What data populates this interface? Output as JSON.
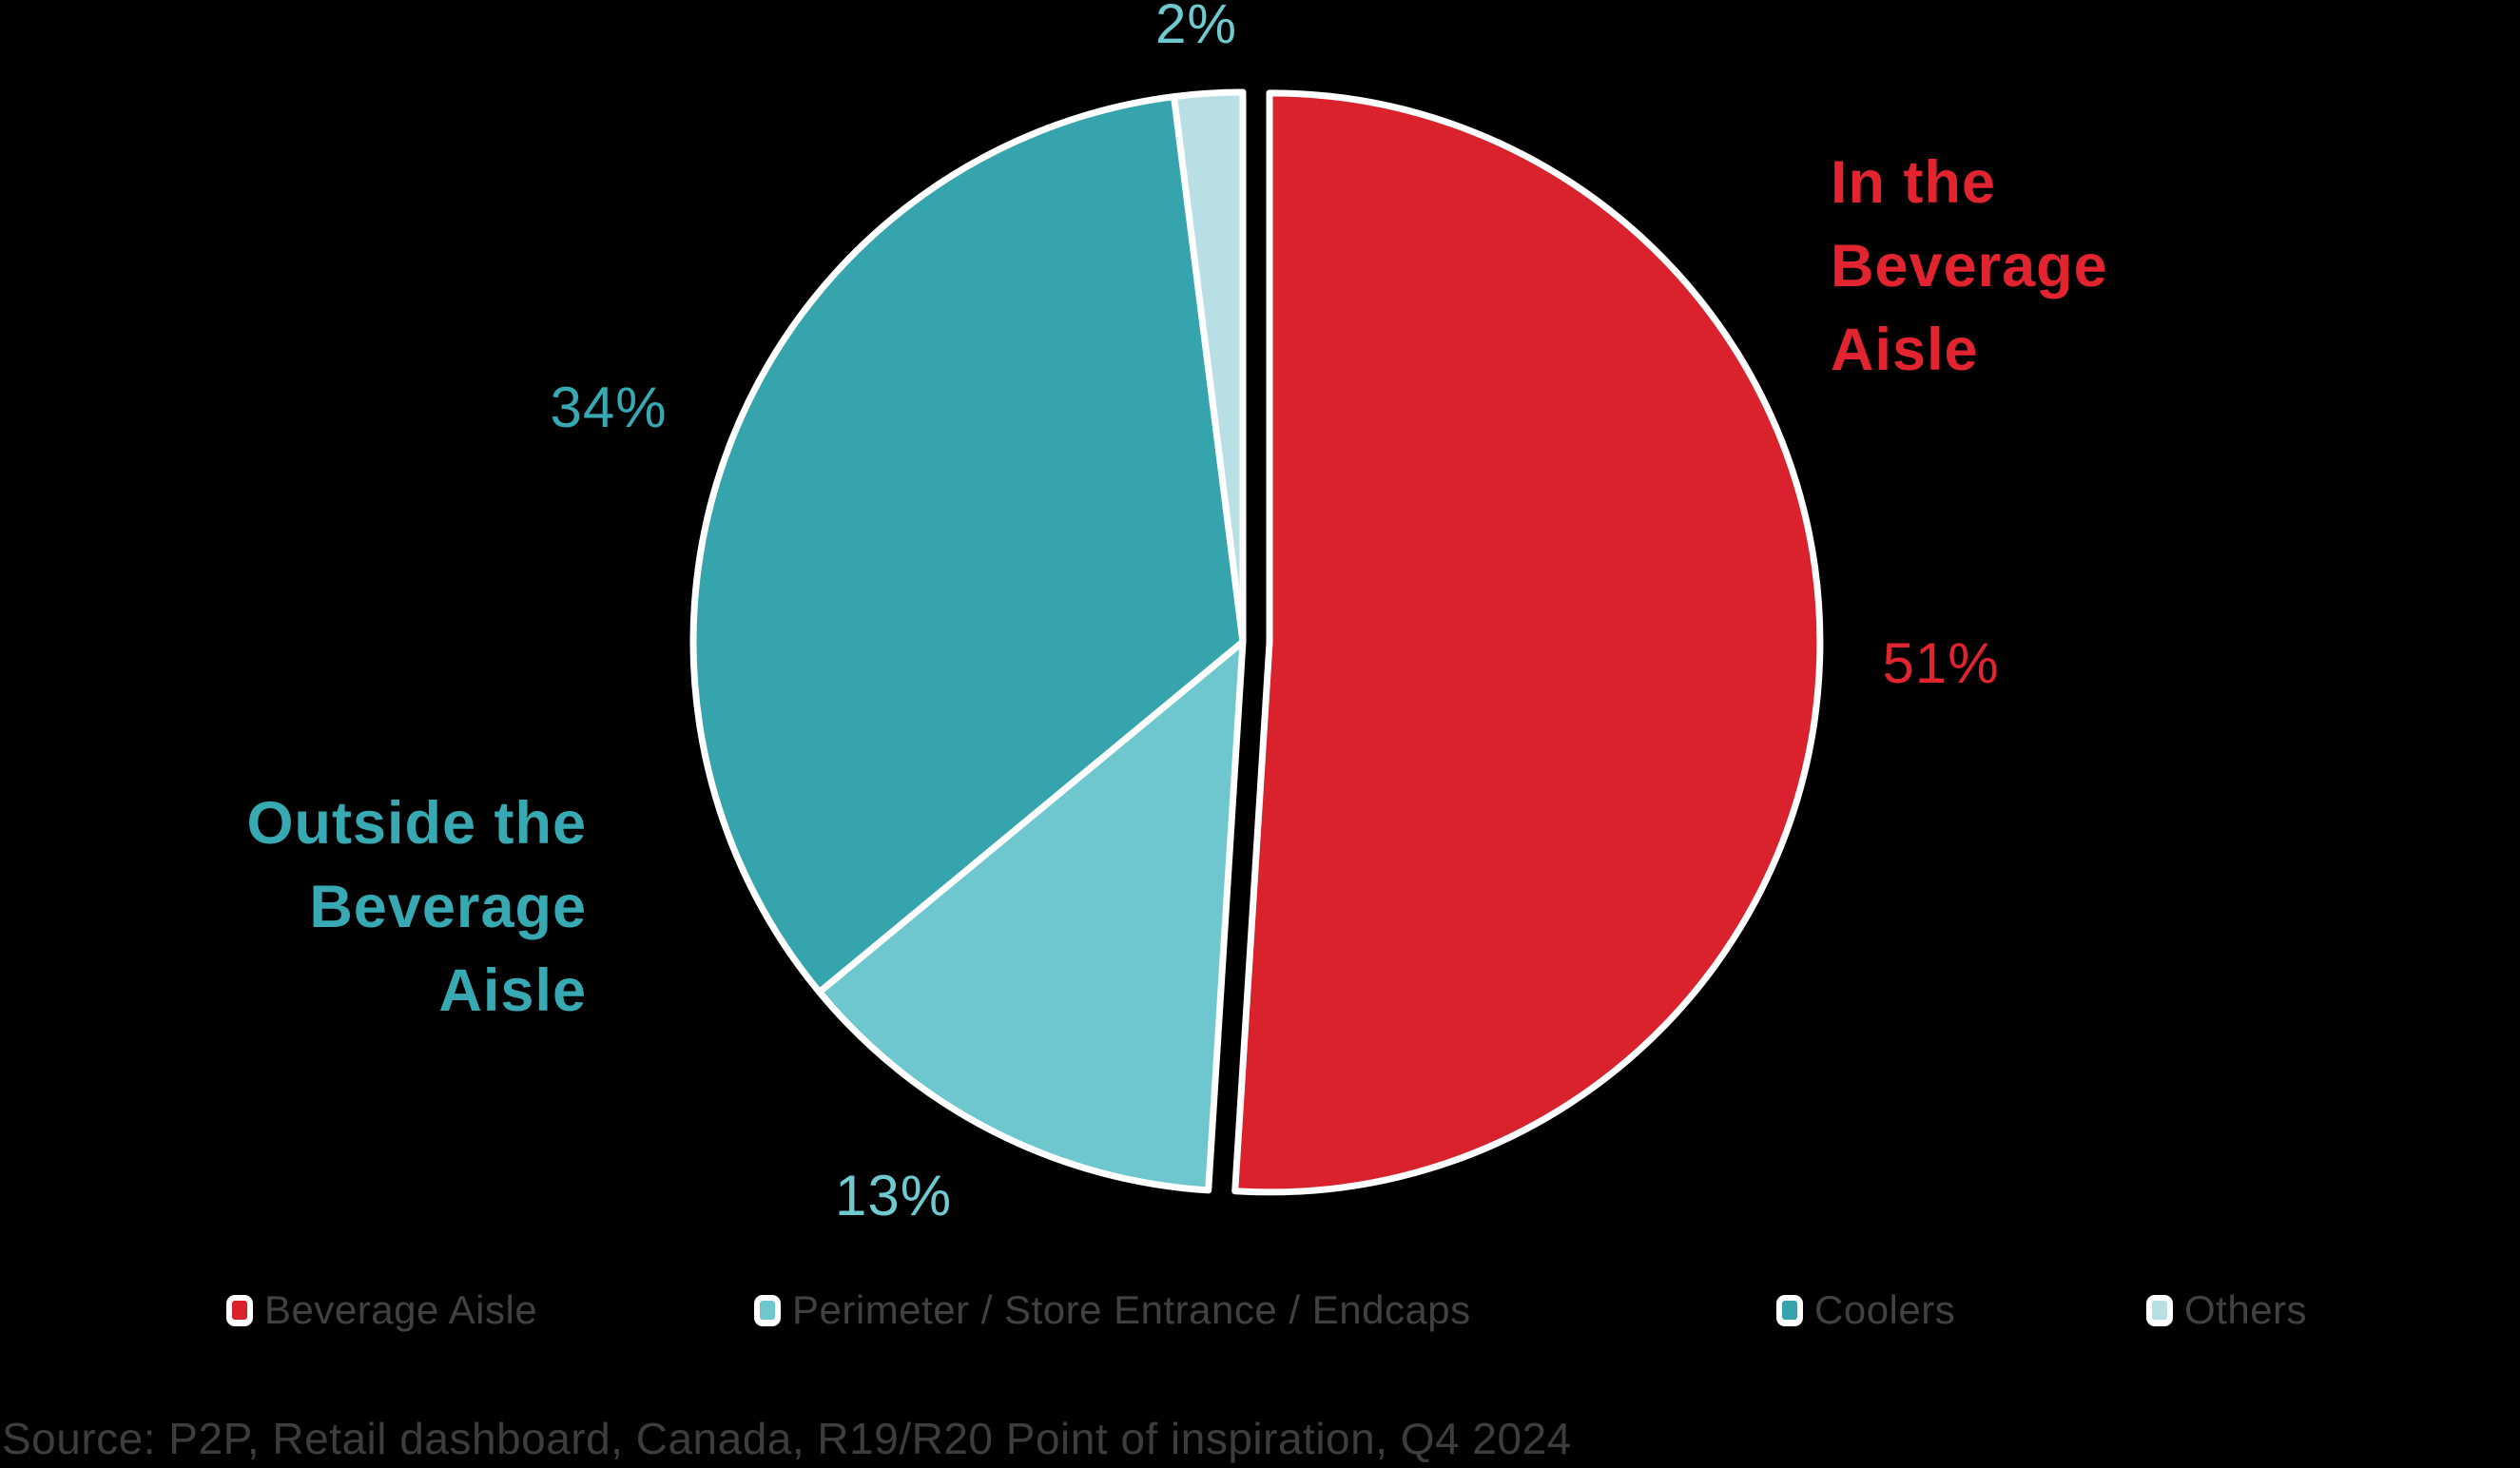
{
  "background_color": "#000000",
  "chart_data": {
    "type": "pie",
    "title": "",
    "start_angle": "top",
    "direction": "clockwise",
    "legend_position": "bottom",
    "total": 100,
    "slices": [
      {
        "label": "Beverage Aisle",
        "value": 51,
        "pct_label": "51%",
        "color": "#d9222b",
        "pct_label_color": "#e12430",
        "exploded": true
      },
      {
        "label": "Perimeter / Store Entrance / Endcaps",
        "value": 13,
        "pct_label": "13%",
        "color": "#6ec7cf",
        "pct_label_color": "#6fc9d1",
        "exploded": false
      },
      {
        "label": "Coolers",
        "value": 34,
        "pct_label": "34%",
        "color": "#35a4ad",
        "pct_label_color": "#37a9b2",
        "exploded": false
      },
      {
        "label": "Others",
        "value": 2,
        "pct_label": "2%",
        "color": "#b7dfe4",
        "pct_label_color": "#6fc9d1",
        "exploded": false
      }
    ],
    "annotations": [
      {
        "text": "In the Beverage Aisle",
        "lines": [
          "In the",
          "Beverage",
          "Aisle"
        ],
        "color": "#e12430",
        "side": "right"
      },
      {
        "text": "Outside the Beverage Aisle",
        "lines": [
          "Outside the",
          "Beverage",
          "Aisle"
        ],
        "color": "#37a9b2",
        "side": "left"
      }
    ],
    "slice_border_color": "#ffffff",
    "source": "Source: P2P, Retail dashboard, Canada, R19/R20 Point of inspiration, Q4 2024"
  }
}
